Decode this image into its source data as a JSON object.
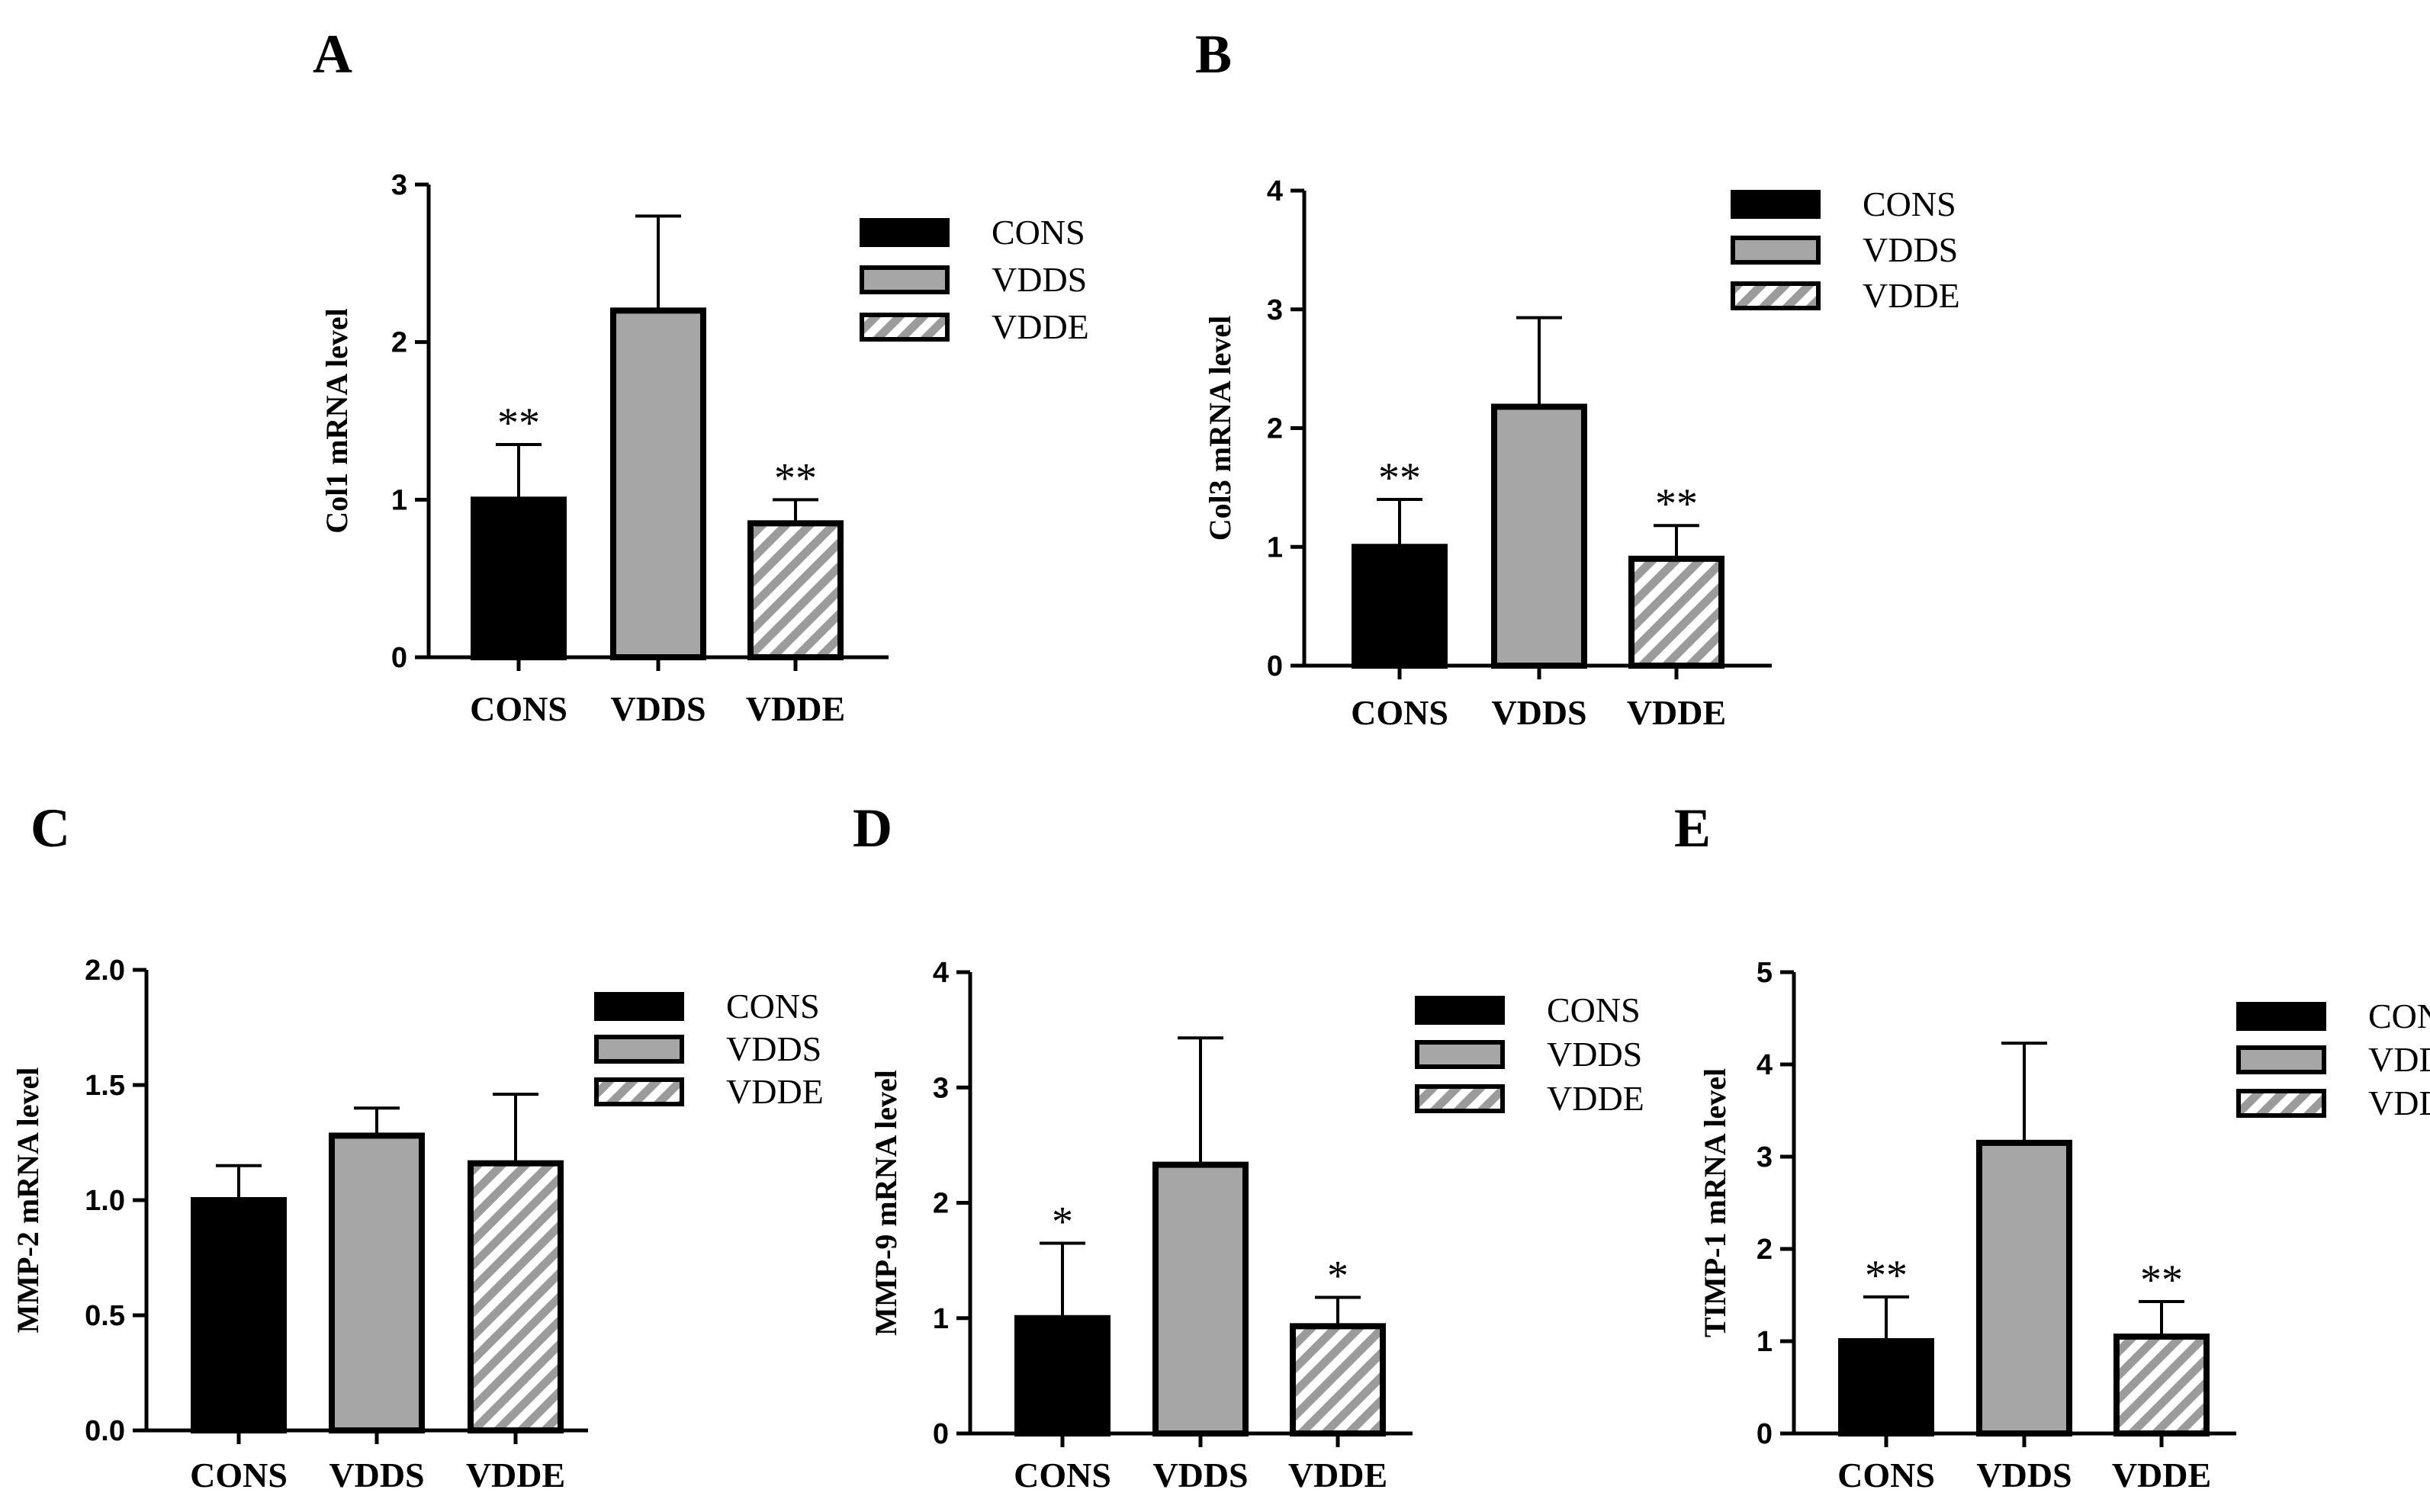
{
  "chart_data": [
    {
      "type": "bar",
      "panel": "A",
      "categories": [
        "CONS",
        "VDDS",
        "VDDE"
      ],
      "values": [
        1.0,
        2.2,
        0.85
      ],
      "errors": [
        0.35,
        0.6,
        0.15
      ],
      "significance": [
        "**",
        "",
        "**"
      ],
      "ylabel": "Col1 mRNA level",
      "ylim": [
        0,
        3
      ],
      "yticks": [
        "0",
        "1",
        "2",
        "3"
      ],
      "legend": [
        "CONS",
        "VDDS",
        "VDDE"
      ]
    },
    {
      "type": "bar",
      "panel": "B",
      "categories": [
        "CONS",
        "VDDS",
        "VDDE"
      ],
      "values": [
        1.0,
        2.18,
        0.9
      ],
      "errors": [
        0.4,
        0.75,
        0.28
      ],
      "significance": [
        "**",
        "",
        "**"
      ],
      "ylabel": "Col3 mRNA level",
      "ylim": [
        0,
        4
      ],
      "yticks": [
        "0",
        "1",
        "2",
        "3",
        "4"
      ],
      "legend": [
        "CONS",
        "VDDS",
        "VDDE"
      ]
    },
    {
      "type": "bar",
      "panel": "C",
      "categories": [
        "CONS",
        "VDDS",
        "VDDE"
      ],
      "values": [
        1.0,
        1.28,
        1.16
      ],
      "errors": [
        0.15,
        0.12,
        0.3
      ],
      "significance": [
        "",
        "",
        ""
      ],
      "ylabel": "MMP-2 mRNA level",
      "ylim": [
        0,
        2
      ],
      "yticks": [
        "0.0",
        "0.5",
        "1.0",
        "1.5",
        "2.0"
      ],
      "legend": [
        "CONS",
        "VDDS",
        "VDDE"
      ]
    },
    {
      "type": "bar",
      "panel": "D",
      "categories": [
        "CONS",
        "VDDS",
        "VDDE"
      ],
      "values": [
        1.0,
        2.33,
        0.93
      ],
      "errors": [
        0.65,
        1.1,
        0.25
      ],
      "significance": [
        "*",
        "",
        "*"
      ],
      "ylabel": "MMP-9 mRNA level",
      "ylim": [
        0,
        4
      ],
      "yticks": [
        "0",
        "1",
        "2",
        "3",
        "4"
      ],
      "legend": [
        "CONS",
        "VDDS",
        "VDDE"
      ]
    },
    {
      "type": "bar",
      "panel": "E",
      "categories": [
        "CONS",
        "VDDS",
        "VDDE"
      ],
      "values": [
        1.0,
        3.15,
        1.05
      ],
      "errors": [
        0.48,
        1.08,
        0.38
      ],
      "significance": [
        "**",
        "",
        "**"
      ],
      "ylabel": "TIMP-1 mRNA level",
      "ylim": [
        0,
        5
      ],
      "yticks": [
        "0",
        "1",
        "2",
        "3",
        "4",
        "5"
      ],
      "legend": [
        "CONS",
        "VDDS",
        "VDDE"
      ]
    }
  ],
  "colors": {
    "cons": "#000000",
    "vdds": "#a6a6a6",
    "vdde_stripe": "#9b9b9b",
    "vdde_bg": "#ffffff",
    "axis": "#000000"
  }
}
